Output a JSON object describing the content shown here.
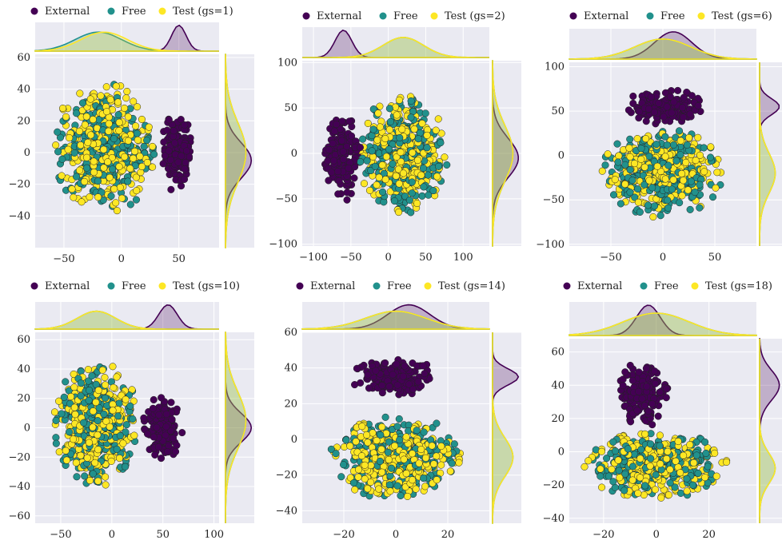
{
  "colors": {
    "external": "#440154",
    "free": "#21918c",
    "test": "#fde725",
    "panel_bg": "#eaeaf2",
    "grid": "#ffffff"
  },
  "chart_data": [
    {
      "type": "scatter",
      "legend": [
        "External",
        "Free",
        "Test (gs=1)"
      ],
      "legend_placement": "top",
      "xlim": [
        -75,
        85
      ],
      "ylim": [
        -60,
        62
      ],
      "xticks": [
        -50,
        0,
        50
      ],
      "yticks": [
        -40,
        -20,
        0,
        20,
        40,
        60
      ],
      "grid": true,
      "clusters": [
        {
          "series": "External",
          "cx": 48,
          "cy": 0,
          "rx": 14,
          "ry": 25
        },
        {
          "series": "Free",
          "cx": -15,
          "cy": 3,
          "rx": 45,
          "ry": 42
        },
        {
          "series": "Test",
          "cx": -15,
          "cy": 3,
          "rx": 45,
          "ry": 42
        }
      ],
      "marginal_x_peaks": {
        "External": 50,
        "Free": -20,
        "Test": -15
      },
      "marginal_y_peaks": {
        "External": -5,
        "Free": 0,
        "Test": 0
      }
    },
    {
      "type": "scatter",
      "legend": [
        "External",
        "Free",
        "Test (gs=2)"
      ],
      "legend_placement": "top",
      "xlim": [
        -115,
        135
      ],
      "ylim": [
        -102,
        102
      ],
      "xticks": [
        -100,
        -50,
        0,
        50,
        100
      ],
      "yticks": [
        -100,
        -50,
        0,
        50,
        100
      ],
      "grid": true,
      "clusters": [
        {
          "series": "External",
          "cx": -60,
          "cy": -5,
          "rx": 25,
          "ry": 48
        },
        {
          "series": "Free",
          "cx": 20,
          "cy": 0,
          "rx": 60,
          "ry": 68
        },
        {
          "series": "Test",
          "cx": 20,
          "cy": 0,
          "rx": 60,
          "ry": 68
        }
      ],
      "marginal_x_peaks": {
        "External": -60,
        "Free": 20,
        "Test": 20
      },
      "marginal_y_peaks": {
        "External": -5,
        "Free": 0,
        "Test": 0
      }
    },
    {
      "type": "scatter",
      "legend": [
        "External",
        "Free",
        "Test (gs=6)"
      ],
      "legend_placement": "top",
      "xlim": [
        -90,
        90
      ],
      "ylim": [
        -102,
        105
      ],
      "xticks": [
        -50,
        0,
        50
      ],
      "yticks": [
        -100,
        -50,
        0,
        50,
        100
      ],
      "grid": true,
      "clusters": [
        {
          "series": "External",
          "cx": 0,
          "cy": 55,
          "rx": 40,
          "ry": 20
        },
        {
          "series": "Free",
          "cx": 0,
          "cy": -20,
          "rx": 60,
          "ry": 50
        },
        {
          "series": "Test",
          "cx": 0,
          "cy": -20,
          "rx": 60,
          "ry": 50
        }
      ],
      "marginal_x_peaks": {
        "External": 10,
        "Free": 0,
        "Test": 0
      },
      "marginal_y_peaks": {
        "External": 55,
        "Free": -20,
        "Test": -20
      }
    },
    {
      "type": "scatter",
      "legend": [
        "External",
        "Free",
        "Test (gs=10)"
      ],
      "legend_placement": "top",
      "xlim": [
        -75,
        105
      ],
      "ylim": [
        -65,
        65
      ],
      "xticks": [
        -50,
        0,
        50,
        100
      ],
      "yticks": [
        -60,
        -40,
        -20,
        0,
        20,
        40,
        60
      ],
      "grid": true,
      "clusters": [
        {
          "series": "External",
          "cx": 50,
          "cy": 0,
          "rx": 20,
          "ry": 22
        },
        {
          "series": "Free",
          "cx": -15,
          "cy": 3,
          "rx": 42,
          "ry": 43
        },
        {
          "series": "Test",
          "cx": -15,
          "cy": 3,
          "rx": 42,
          "ry": 43
        }
      ],
      "marginal_x_peaks": {
        "External": 55,
        "Free": -15,
        "Test": -15
      },
      "marginal_y_peaks": {
        "External": 0,
        "Free": 5,
        "Test": 5
      }
    },
    {
      "type": "scatter",
      "legend": [
        "External",
        "Free",
        "Test (gs=14)"
      ],
      "legend_placement": "top",
      "xlim": [
        -36,
        36
      ],
      "ylim": [
        -47,
        60
      ],
      "xticks": [
        -20,
        0,
        20
      ],
      "yticks": [
        -40,
        -20,
        0,
        20,
        40,
        60
      ],
      "grid": true,
      "clusters": [
        {
          "series": "External",
          "cx": 0,
          "cy": 35,
          "rx": 18,
          "ry": 10
        },
        {
          "series": "Free",
          "cx": 0,
          "cy": -10,
          "rx": 26,
          "ry": 24
        },
        {
          "series": "Test",
          "cx": 0,
          "cy": -10,
          "rx": 26,
          "ry": 24
        }
      ],
      "marginal_x_peaks": {
        "External": 5,
        "Free": 0,
        "Test": 0
      },
      "marginal_y_peaks": {
        "External": 35,
        "Free": -10,
        "Test": -10
      }
    },
    {
      "type": "scatter",
      "legend": [
        "External",
        "Free",
        "Test (gs=18)"
      ],
      "legend_placement": "top",
      "xlim": [
        -33,
        38
      ],
      "ylim": [
        -43,
        68
      ],
      "xticks": [
        -20,
        0,
        20
      ],
      "yticks": [
        -40,
        -20,
        0,
        20,
        40,
        60
      ],
      "grid": true,
      "clusters": [
        {
          "series": "External",
          "cx": -5,
          "cy": 35,
          "rx": 10,
          "ry": 20
        },
        {
          "series": "Free",
          "cx": 0,
          "cy": -8,
          "rx": 28,
          "ry": 20
        },
        {
          "series": "Test",
          "cx": 0,
          "cy": -8,
          "rx": 28,
          "ry": 20
        }
      ],
      "marginal_x_peaks": {
        "External": -3,
        "Free": 0,
        "Test": 0
      },
      "marginal_y_peaks": {
        "External": 40,
        "Free": -10,
        "Test": -10
      }
    }
  ]
}
